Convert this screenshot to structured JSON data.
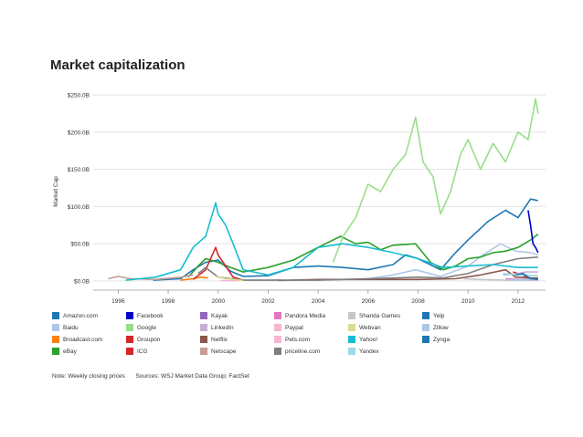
{
  "chart_data": {
    "type": "line",
    "title": "Market capitalization",
    "ylabel": "Market Cap",
    "xlabel": "",
    "x_ticks": [
      "1996",
      "1998",
      "2000",
      "2002",
      "2004",
      "2006",
      "2008",
      "2010",
      "2012"
    ],
    "y_ticks": [
      "$0.0B",
      "$50.0B",
      "$100.0B",
      "$150.0B",
      "$200.0B",
      "$250.0B"
    ],
    "xlim": [
      1995,
      2013.1
    ],
    "ylim": [
      -5,
      255
    ],
    "series": [
      {
        "name": "Amazon.com",
        "color": "#1f77b4",
        "x": [
          1997.4,
          1998.5,
          1999.0,
          1999.5,
          2000.0,
          2000.5,
          2001.0,
          2002.0,
          2003.0,
          2004.0,
          2005.0,
          2006.0,
          2007.0,
          2007.5,
          2008.0,
          2008.9,
          2009.5,
          2010.0,
          2010.8,
          2011.5,
          2012.0,
          2012.5,
          2012.8
        ],
        "values": [
          1,
          3,
          15,
          25,
          28,
          13,
          6,
          7,
          18,
          20,
          18,
          15,
          22,
          35,
          30,
          15,
          38,
          55,
          80,
          95,
          85,
          110,
          108
        ]
      },
      {
        "name": "Baidu",
        "color": "#aec7e8",
        "x": [
          2005.6,
          2006.0,
          2007.0,
          2007.9,
          2008.9,
          2010.0,
          2010.6,
          2011.3,
          2011.9,
          2012.5,
          2012.8
        ],
        "values": [
          2,
          3,
          8,
          15,
          6,
          20,
          35,
          50,
          40,
          38,
          35
        ]
      },
      {
        "name": "Broadcast.com",
        "color": "#ff7f0e",
        "x": [
          1998.5,
          1999.0,
          1999.3,
          1999.6
        ],
        "values": [
          1,
          3,
          5,
          4
        ]
      },
      {
        "name": "eBay",
        "color": "#2ca02c",
        "x": [
          1998.8,
          1999.2,
          1999.5,
          2000.0,
          2000.5,
          2001.0,
          2002.0,
          2003.0,
          2004.0,
          2004.9,
          2005.5,
          2006.0,
          2006.5,
          2007.0,
          2007.9,
          2008.5,
          2009.0,
          2009.5,
          2010.0,
          2010.5,
          2011.0,
          2011.5,
          2012.0,
          2012.5,
          2012.8
        ],
        "values": [
          5,
          20,
          30,
          25,
          18,
          12,
          18,
          28,
          45,
          60,
          50,
          52,
          42,
          48,
          50,
          25,
          15,
          20,
          30,
          32,
          38,
          40,
          45,
          55,
          63
        ]
      },
      {
        "name": "Facebook",
        "color": "#0000cc",
        "x": [
          2012.4,
          2012.5,
          2012.6,
          2012.7,
          2012.8
        ],
        "values": [
          95,
          75,
          50,
          45,
          38
        ]
      },
      {
        "name": "Google",
        "color": "#98df8a",
        "x": [
          2004.6,
          2005.0,
          2005.5,
          2006.0,
          2006.5,
          2007.0,
          2007.5,
          2007.9,
          2008.2,
          2008.6,
          2008.9,
          2009.3,
          2009.7,
          2010.0,
          2010.5,
          2011.0,
          2011.5,
          2012.0,
          2012.4,
          2012.7,
          2012.8
        ],
        "values": [
          25,
          60,
          85,
          130,
          120,
          150,
          170,
          220,
          160,
          140,
          90,
          120,
          170,
          190,
          150,
          185,
          160,
          200,
          190,
          245,
          225
        ]
      },
      {
        "name": "Groupon",
        "color": "#d62728",
        "x": [
          2011.8,
          2012.0,
          2012.3,
          2012.6,
          2012.8
        ],
        "values": [
          12,
          10,
          6,
          3,
          3
        ]
      },
      {
        "name": "ICG",
        "color": "#d62728",
        "x": [
          1999.0,
          1999.5,
          1999.9,
          2000.0,
          2000.3,
          2000.6,
          2001.0
        ],
        "values": [
          2,
          15,
          45,
          35,
          20,
          5,
          1
        ]
      },
      {
        "name": "Kayak",
        "color": "#9467bd",
        "x": [
          2012.5,
          2012.8
        ],
        "values": [
          1,
          1
        ]
      },
      {
        "name": "LinkedIn",
        "color": "#c5b0d5",
        "x": [
          2011.4,
          2011.8,
          2012.3,
          2012.8
        ],
        "values": [
          8,
          9,
          12,
          12
        ]
      },
      {
        "name": "Netflix",
        "color": "#8c564b",
        "x": [
          2002.4,
          2004.0,
          2006.0,
          2008.0,
          2009.5,
          2010.5,
          2011.5,
          2011.9,
          2012.5,
          2012.8
        ],
        "values": [
          0.5,
          2,
          2,
          2,
          3,
          8,
          15,
          5,
          4,
          4
        ]
      },
      {
        "name": "Netscape",
        "color": "#c49c94",
        "x": [
          1995.6,
          1996.0,
          1996.5,
          1997.5,
          1998.5,
          1999.0
        ],
        "values": [
          3,
          6,
          3,
          2,
          5,
          8
        ]
      },
      {
        "name": "Pandora Media",
        "color": "#e377c2",
        "x": [
          2011.5,
          2012.0,
          2012.8
        ],
        "values": [
          3,
          2,
          1.5
        ]
      },
      {
        "name": "Paypal",
        "color": "#f7b6d2",
        "x": [
          2002.1,
          2002.5
        ],
        "values": [
          1,
          2
        ]
      },
      {
        "name": "Pets.com",
        "color": "#f7b6d2",
        "x": [
          2000.1,
          2000.8
        ],
        "values": [
          0.5,
          0.3
        ]
      },
      {
        "name": "priceline.com",
        "color": "#7f7f7f",
        "x": [
          1999.2,
          1999.5,
          2000.0,
          2001.0,
          2004.0,
          2007.0,
          2008.0,
          2009.0,
          2010.0,
          2011.0,
          2012.0,
          2012.8
        ],
        "values": [
          10,
          18,
          5,
          1,
          1,
          4,
          5,
          4,
          10,
          22,
          30,
          32
        ]
      },
      {
        "name": "Shanda Games",
        "color": "#c7c7c7",
        "x": [
          2009.8,
          2010.5,
          2011.5,
          2012.8
        ],
        "values": [
          3,
          2,
          1,
          1
        ]
      },
      {
        "name": "Webvan",
        "color": "#dbdb8d",
        "x": [
          1999.9,
          2000.3,
          2001.0
        ],
        "values": [
          6,
          3,
          0.5
        ]
      },
      {
        "name": "Yahoo!",
        "color": "#17becf",
        "x": [
          1996.3,
          1997.5,
          1998.5,
          1999.0,
          1999.5,
          1999.9,
          2000.0,
          2000.3,
          2000.6,
          2001.0,
          2002.0,
          2003.0,
          2004.0,
          2005.0,
          2006.0,
          2007.0,
          2008.0,
          2009.0,
          2010.0,
          2011.0,
          2012.0,
          2012.8
        ],
        "values": [
          1,
          5,
          15,
          45,
          60,
          105,
          90,
          75,
          50,
          15,
          8,
          18,
          45,
          50,
          45,
          38,
          30,
          18,
          20,
          22,
          18,
          18
        ]
      },
      {
        "name": "Yandex",
        "color": "#9edae5",
        "x": [
          2011.4,
          2012.0,
          2012.8
        ],
        "values": [
          10,
          8,
          7
        ]
      },
      {
        "name": "Yelp",
        "color": "#1f77b4",
        "x": [
          2012.2,
          2012.8
        ],
        "values": [
          1.5,
          1.5
        ]
      },
      {
        "name": "Zillow",
        "color": "#aec7e8",
        "x": [
          2011.6,
          2012.8
        ],
        "values": [
          1,
          1.5
        ]
      },
      {
        "name": "Zynga",
        "color": "#1f77b4",
        "x": [
          2011.9,
          2012.2,
          2012.5,
          2012.8
        ],
        "values": [
          8,
          10,
          3,
          2
        ]
      }
    ],
    "legend": [
      [
        "Amazon.com",
        "#1f77b4"
      ],
      [
        "Facebook",
        "#0000cc"
      ],
      [
        "Kayak",
        "#9467bd"
      ],
      [
        "Pandora Media",
        "#e377c2"
      ],
      [
        "Shanda Games",
        "#c7c7c7"
      ],
      [
        "Yelp",
        "#1f77b4"
      ],
      [
        "Baidu",
        "#aec7e8"
      ],
      [
        "Google",
        "#98df8a"
      ],
      [
        "LinkedIn",
        "#c5b0d5"
      ],
      [
        "Paypal",
        "#f7b6d2"
      ],
      [
        "Webvan",
        "#dbdb8d"
      ],
      [
        "Zillow",
        "#aec7e8"
      ],
      [
        "Broadcast.com",
        "#ff7f0e"
      ],
      [
        "Groupon",
        "#d62728"
      ],
      [
        "Netflix",
        "#8c564b"
      ],
      [
        "Pets.com",
        "#f7b6d2"
      ],
      [
        "Yahoo!",
        "#17becf"
      ],
      [
        "Zynga",
        "#1f77b4"
      ],
      [
        "eBay",
        "#2ca02c"
      ],
      [
        "ICG",
        "#d62728"
      ],
      [
        "Netscape",
        "#c49c94"
      ],
      [
        "priceline.com",
        "#7f7f7f"
      ],
      [
        "Yandex",
        "#9edae5"
      ]
    ]
  },
  "note": "Note: Weekly closing prices",
  "sources": "Sources: WSJ Market Data Group; FactSet"
}
